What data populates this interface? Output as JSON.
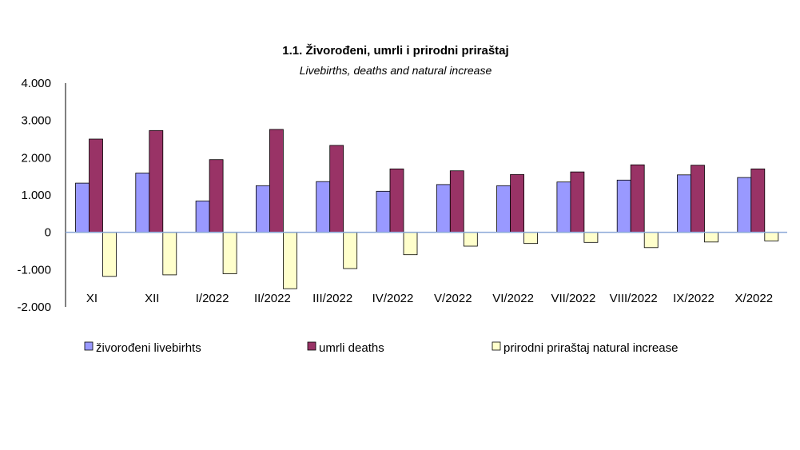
{
  "chart_data": {
    "type": "bar",
    "title": "1.1. Živorođeni, umrli  i prirodni priraštaj",
    "subtitle": "Livebirths,  deaths and natural  increase",
    "categories": [
      "XI",
      "XII",
      "I/2022",
      "II/2022",
      "III/2022",
      "IV/2022",
      "V/2022",
      "VI/2022",
      "VII/2022",
      "VIII/2022",
      "IX/2022",
      "X/2022"
    ],
    "series": [
      {
        "name": "živorođeni livebirhts",
        "color": "#9999ff",
        "values": [
          1320,
          1590,
          840,
          1250,
          1360,
          1100,
          1280,
          1250,
          1350,
          1400,
          1540,
          1470
        ]
      },
      {
        "name": "umrli deaths",
        "color": "#993366",
        "values": [
          2500,
          2730,
          1950,
          2760,
          2330,
          1700,
          1650,
          1550,
          1620,
          1810,
          1800,
          1700
        ]
      },
      {
        "name": "prirodni priraštaj natural increase",
        "color": "#ffffcc",
        "values": [
          -1180,
          -1140,
          -1110,
          -1510,
          -970,
          -600,
          -370,
          -300,
          -270,
          -410,
          -260,
          -230
        ]
      }
    ],
    "ylim": [
      -2000,
      4000
    ],
    "yticks": [
      "4.000",
      "3.000",
      "2.000",
      "1.000",
      "0",
      "-1.000",
      "-2.000"
    ],
    "ytick_values": [
      4000,
      3000,
      2000,
      1000,
      0,
      -1000,
      -2000
    ],
    "legend_position": "bottom",
    "grid": false
  }
}
